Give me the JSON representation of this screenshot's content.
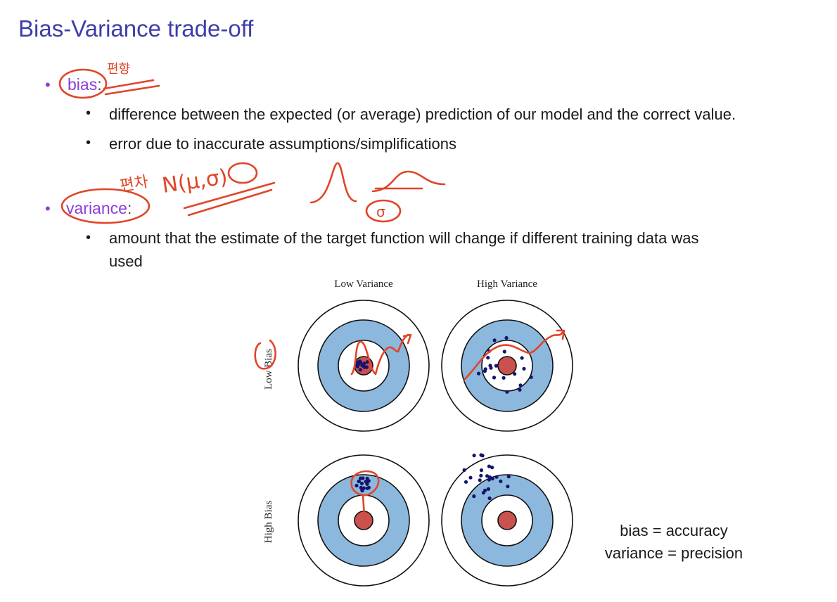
{
  "slide": {
    "title": "Bias-Variance trade-off",
    "bullets": [
      {
        "term": "bias",
        "suffix": ":",
        "subitems": [
          "difference between the expected (or average) prediction of our model and the correct value.",
          "error due to inaccurate assumptions/simplifications"
        ]
      },
      {
        "term": "variance",
        "suffix": ":",
        "subitems": [
          "amount that the estimate of the target function will change if different training data was",
          "used"
        ]
      }
    ],
    "summary": [
      "bias = accuracy",
      "variance = precision"
    ]
  },
  "diagram": {
    "col_labels": [
      "Low Variance",
      "High Variance"
    ],
    "row_labels": [
      "Low Bias",
      "High Bias"
    ],
    "colors": {
      "outer_ring": "#ffffff",
      "blue_ring": "#8db8dd",
      "center": "#c9524f",
      "dots": "#141470",
      "ring_stroke": "#111111"
    }
  },
  "annotations": {
    "bias_note": "편향",
    "variance_note": "편차",
    "variance_formula": "N(μ,σ)",
    "sigma": "σ"
  },
  "colors": {
    "title": "#3d3dab",
    "term": "#8b3fd6",
    "ink": "#e0452a"
  }
}
